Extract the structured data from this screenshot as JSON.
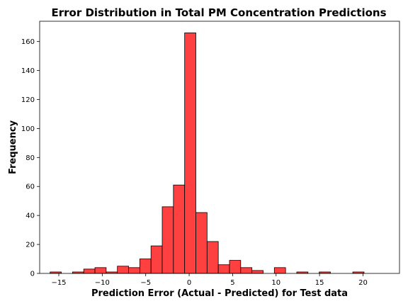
{
  "chart_data": {
    "type": "bar",
    "title": "Error Distribution in Total PM Concentration Predictions",
    "xlabel": "Prediction Error (Actual - Predicted) for Test data",
    "ylabel": "Frequency",
    "xlim": [
      -17.2,
      24.2
    ],
    "ylim": [
      0,
      174
    ],
    "xticks": [
      -15,
      -10,
      -5,
      0,
      5,
      10,
      15,
      20
    ],
    "xtick_labels": [
      "−15",
      "−10",
      "−5",
      "0",
      "5",
      "10",
      "15",
      "20"
    ],
    "yticks": [
      0,
      20,
      40,
      60,
      80,
      100,
      120,
      140,
      160
    ],
    "bin_start": -16.0,
    "bin_width": 1.29,
    "values": [
      1,
      0,
      1,
      3,
      4,
      1,
      5,
      4,
      10,
      19,
      46,
      61,
      166,
      42,
      22,
      6,
      9,
      4,
      2,
      0,
      4,
      0,
      1,
      0,
      1,
      0,
      0,
      1
    ],
    "bar_color": "#ff4040",
    "edge_color": "#000000",
    "grid": false
  }
}
